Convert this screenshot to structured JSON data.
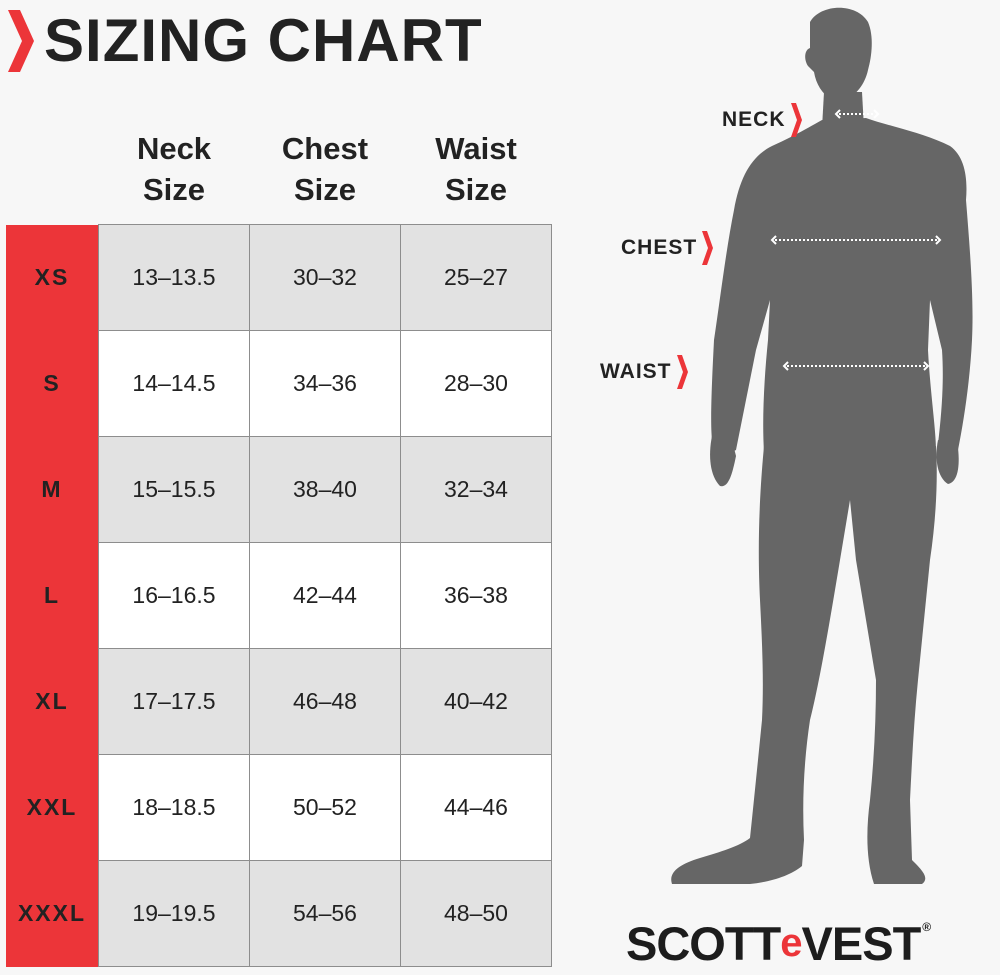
{
  "title": "SIZING CHART",
  "columns": [
    {
      "line1": "Neck",
      "line2": "Size"
    },
    {
      "line1": "Chest",
      "line2": "Size"
    },
    {
      "line1": "Waist",
      "line2": "Size"
    }
  ],
  "rows": [
    {
      "size": "XS",
      "neck": "13–13.5",
      "chest": "30–32",
      "waist": "25–27"
    },
    {
      "size": "S",
      "neck": "14–14.5",
      "chest": "34–36",
      "waist": "28–30"
    },
    {
      "size": "M",
      "neck": "15–15.5",
      "chest": "38–40",
      "waist": "32–34"
    },
    {
      "size": "L",
      "neck": "16–16.5",
      "chest": "42–44",
      "waist": "36–38"
    },
    {
      "size": "XL",
      "neck": "17–17.5",
      "chest": "46–48",
      "waist": "40–42"
    },
    {
      "size": "XXL",
      "neck": "18–18.5",
      "chest": "50–52",
      "waist": "44–46"
    },
    {
      "size": "XXXL",
      "neck": "19–19.5",
      "chest": "54–56",
      "waist": "48–50"
    }
  ],
  "measure_labels": {
    "neck": "NECK",
    "chest": "CHEST",
    "waist": "WAIST"
  },
  "logo": {
    "part1": "SCOTT",
    "part2": "e",
    "part3": "VEST",
    "mark": "®"
  },
  "colors": {
    "accent": "#ec3539",
    "text": "#222222",
    "silhouette": "#666666",
    "row_shade": "#e2e2e2",
    "background": "#f7f7f7"
  },
  "icons": [
    "chevron-right-icon",
    "double-arrow-icon",
    "person-silhouette"
  ]
}
